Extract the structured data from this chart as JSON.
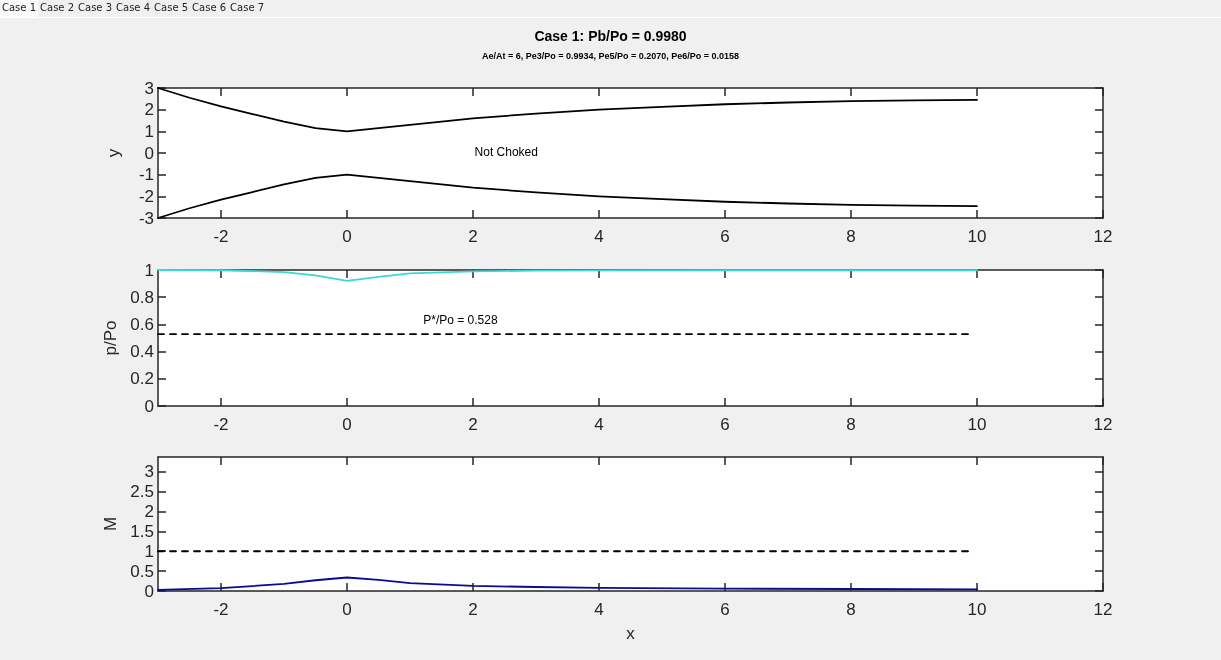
{
  "chart_data": [
    {
      "type": "other",
      "annotations": [
        "Case 1",
        "Case 2",
        "Case 3",
        "Case 4",
        "Case 5",
        "Case 6",
        "Case 7"
      ]
    },
    {
      "type": "line",
      "title": "Case 1: Pb/Po = 0.9980",
      "subtitle": "Ae/At = 6, Pe3/Po = 0.9934, Pe5/Po = 0.2070, Pe6/Po = 0.0158",
      "ylabel": "y",
      "xlim": [
        -3,
        12
      ],
      "xticks": [
        -2,
        0,
        2,
        4,
        6,
        8,
        10,
        12
      ],
      "ylim": [
        -3,
        3
      ],
      "yticks": [
        -3,
        -2,
        -1,
        0,
        1,
        2,
        3
      ],
      "marker": "none",
      "annotations": [
        "Not Choked"
      ],
      "series": [
        {
          "color": "#000000",
          "x": [
            -3,
            -2.5,
            -2,
            -1.5,
            -1,
            -0.5,
            0,
            1,
            2,
            3,
            4,
            5,
            6,
            7,
            8,
            9,
            10
          ],
          "values": [
            3,
            2.55,
            2.15,
            1.8,
            1.45,
            1.15,
            1,
            1.3,
            1.6,
            1.82,
            2,
            2.13,
            2.25,
            2.33,
            2.39,
            2.43,
            2.45
          ]
        },
        {
          "color": "#000000",
          "x": [
            -3,
            -2.5,
            -2,
            -1.5,
            -1,
            -0.5,
            0,
            1,
            2,
            3,
            4,
            5,
            6,
            7,
            8,
            9,
            10
          ],
          "values": [
            -3,
            -2.55,
            -2.15,
            -1.8,
            -1.45,
            -1.15,
            -1,
            -1.3,
            -1.6,
            -1.82,
            -2,
            -2.13,
            -2.25,
            -2.33,
            -2.39,
            -2.43,
            -2.45
          ]
        }
      ]
    },
    {
      "type": "line",
      "ylabel": "p/Po",
      "xlim": [
        -3,
        12
      ],
      "xticks": [
        -2,
        0,
        2,
        4,
        6,
        8,
        10,
        12
      ],
      "ylim": [
        0,
        1
      ],
      "yticks": [
        0,
        0.2,
        0.4,
        0.6,
        0.8,
        1
      ],
      "marker": "none",
      "annotations": [
        {
          "text": "P*/Po = 0.528",
          "x": 1.8,
          "y": 0.528
        }
      ],
      "series": [
        {
          "color": "#3fd5dc",
          "x": [
            -3,
            -2,
            -1,
            -0.5,
            0,
            0.5,
            1,
            2,
            3,
            4,
            6,
            8,
            10
          ],
          "values": [
            1,
            0.998,
            0.985,
            0.96,
            0.92,
            0.95,
            0.975,
            0.99,
            0.995,
            0.997,
            0.998,
            0.998,
            0.998
          ]
        },
        {
          "color": "#000000",
          "line_style": "dashed",
          "x": [
            -3,
            9.9
          ],
          "values": [
            0.528,
            0.528
          ]
        }
      ]
    },
    {
      "type": "line",
      "xlabel": "x",
      "ylabel": "M",
      "xlim": [
        -3,
        12
      ],
      "xticks": [
        -2,
        0,
        2,
        4,
        6,
        8,
        10,
        12
      ],
      "ylim": [
        0,
        3.37
      ],
      "yticks": [
        0,
        0.5,
        1,
        1.5,
        2,
        2.5,
        3
      ],
      "marker": "none",
      "series": [
        {
          "color": "#0a0a96",
          "x": [
            -3,
            -2,
            -1,
            -0.5,
            0,
            0.5,
            1,
            2,
            3,
            4,
            6,
            8,
            10
          ],
          "values": [
            0.03,
            0.07,
            0.18,
            0.27,
            0.34,
            0.28,
            0.2,
            0.13,
            0.1,
            0.08,
            0.06,
            0.05,
            0.04
          ]
        },
        {
          "color": "#000000",
          "line_style": "dashed",
          "x": [
            -3,
            9.9
          ],
          "values": [
            1,
            1
          ]
        }
      ]
    }
  ]
}
